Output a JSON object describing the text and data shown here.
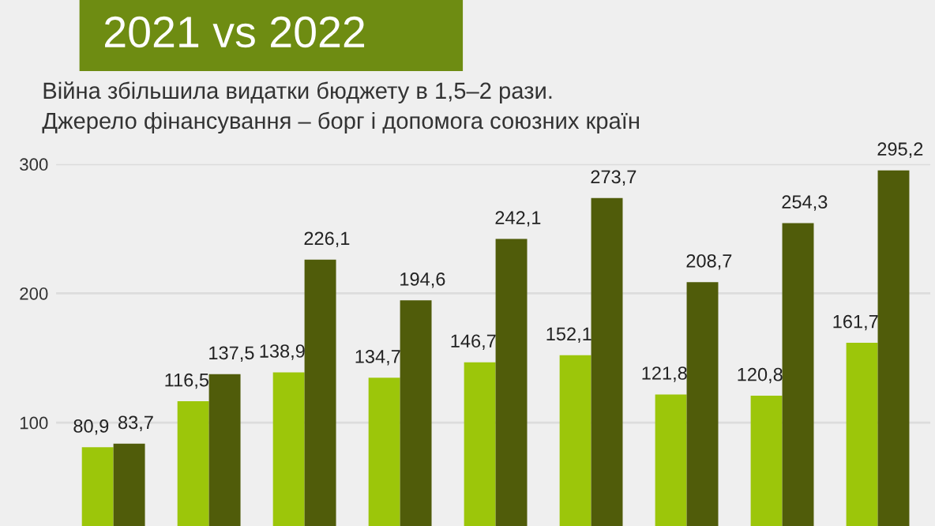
{
  "chart_data": {
    "type": "bar",
    "title": "2021 vs 2022",
    "subtitle": "Війна збільшила видатки бюджету в 1,5–2 рази.\nДжерело фінансування – борг і допомога союзних країн",
    "categories": [
      null,
      null,
      null,
      null,
      null,
      null,
      null,
      null,
      null
    ],
    "series": [
      {
        "color": "#9cc60a",
        "values": [
          80.9,
          116.5,
          138.9,
          134.7,
          146.7,
          152.1,
          121.8,
          120.8,
          161.7
        ],
        "value_labels": [
          "80,9",
          "116,5",
          "138,9",
          "134,7",
          "146,7",
          "152,1",
          "121,8",
          "120,8",
          "161,7"
        ]
      },
      {
        "color": "#505c0a",
        "values": [
          83.7,
          137.5,
          226.1,
          194.6,
          242.1,
          273.7,
          208.7,
          254.3,
          295.2
        ],
        "value_labels": [
          "83,7",
          "137,5",
          "226,1",
          "194,6",
          "242,1",
          "273,7",
          "208,7",
          "254,3",
          "295,2"
        ]
      }
    ],
    "ylim": [
      20,
      300
    ],
    "yticks": [
      100,
      200,
      300
    ],
    "grid": "y"
  }
}
